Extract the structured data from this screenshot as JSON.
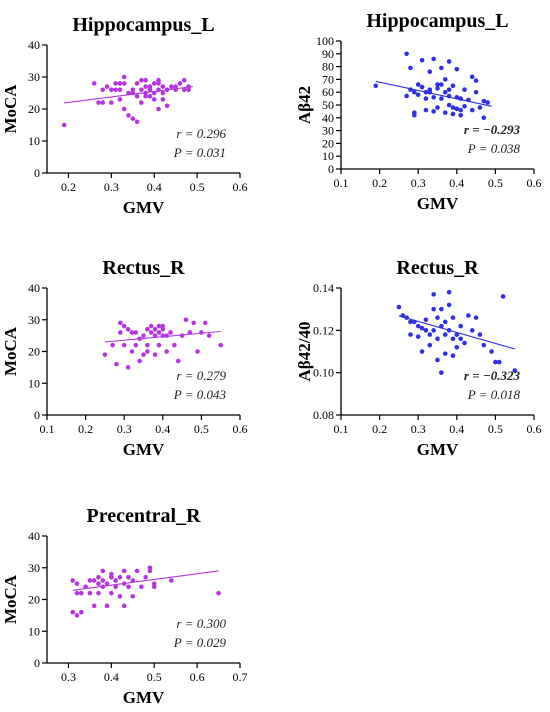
{
  "chart_data": [
    {
      "type": "scatter",
      "title": "Hippocampus_L",
      "xlabel": "GMV",
      "ylabel": "MoCA",
      "xlim": [
        0.15,
        0.6
      ],
      "ylim": [
        0,
        40
      ],
      "xticks": [
        0.2,
        0.3,
        0.4,
        0.5,
        0.6
      ],
      "xtick_labels": [
        "0.2",
        "0.3",
        "0.4",
        "0.5",
        "0.6"
      ],
      "yticks": [
        0,
        10,
        20,
        30,
        40
      ],
      "ytick_labels": [
        "0",
        "10",
        "20",
        "30",
        "40"
      ],
      "color": "#b535e2",
      "r_text": "r = 0.296",
      "p_text": "P = 0.031",
      "fit_line": [
        [
          0.19,
          21.9
        ],
        [
          0.49,
          27.0
        ]
      ],
      "points": [
        [
          0.19,
          15
        ],
        [
          0.26,
          28
        ],
        [
          0.27,
          22
        ],
        [
          0.28,
          26
        ],
        [
          0.28,
          22
        ],
        [
          0.29,
          27
        ],
        [
          0.3,
          26
        ],
        [
          0.3,
          22
        ],
        [
          0.31,
          28
        ],
        [
          0.31,
          26
        ],
        [
          0.32,
          28
        ],
        [
          0.32,
          23
        ],
        [
          0.32,
          26
        ],
        [
          0.33,
          30
        ],
        [
          0.33,
          20
        ],
        [
          0.33,
          28
        ],
        [
          0.34,
          25
        ],
        [
          0.34,
          18
        ],
        [
          0.35,
          26
        ],
        [
          0.35,
          17
        ],
        [
          0.35,
          25
        ],
        [
          0.36,
          24
        ],
        [
          0.36,
          16
        ],
        [
          0.36,
          28
        ],
        [
          0.37,
          26
        ],
        [
          0.37,
          29
        ],
        [
          0.37,
          22
        ],
        [
          0.38,
          24
        ],
        [
          0.38,
          27
        ],
        [
          0.38,
          25
        ],
        [
          0.38,
          29
        ],
        [
          0.39,
          27
        ],
        [
          0.39,
          24
        ],
        [
          0.39,
          26
        ],
        [
          0.4,
          28
        ],
        [
          0.4,
          23
        ],
        [
          0.4,
          25
        ],
        [
          0.41,
          26
        ],
        [
          0.41,
          29
        ],
        [
          0.41,
          28
        ],
        [
          0.41,
          20
        ],
        [
          0.42,
          27
        ],
        [
          0.42,
          25
        ],
        [
          0.42,
          23
        ],
        [
          0.43,
          26
        ],
        [
          0.43,
          21
        ],
        [
          0.44,
          27
        ],
        [
          0.45,
          26
        ],
        [
          0.45,
          27
        ],
        [
          0.46,
          28
        ],
        [
          0.47,
          26
        ],
        [
          0.47,
          29
        ],
        [
          0.48,
          27
        ],
        [
          0.48,
          26
        ]
      ]
    },
    {
      "type": "scatter",
      "title": "Hippocampus_L",
      "xlabel": "GMV",
      "ylabel": "Aβ42",
      "xlim": [
        0.1,
        0.6
      ],
      "ylim": [
        0,
        100
      ],
      "xticks": [
        0.1,
        0.2,
        0.3,
        0.4,
        0.5,
        0.6
      ],
      "xtick_labels": [
        "0.1",
        "0.2",
        "0.3",
        "0.4",
        "0.5",
        "0.6"
      ],
      "yticks": [
        0,
        10,
        20,
        30,
        40,
        50,
        60,
        70,
        80,
        90,
        100
      ],
      "ytick_labels": [
        "0",
        "10",
        "20",
        "30",
        "40",
        "50",
        "60",
        "70",
        "80",
        "90",
        "100"
      ],
      "color": "#2f2fe8",
      "r_text": "r = −0.293",
      "p_text": "P = 0.038",
      "fit_line": [
        [
          0.19,
          68.5
        ],
        [
          0.49,
          49.0
        ]
      ],
      "points": [
        [
          0.19,
          65
        ],
        [
          0.27,
          57
        ],
        [
          0.27,
          90
        ],
        [
          0.28,
          62
        ],
        [
          0.28,
          79
        ],
        [
          0.29,
          44
        ],
        [
          0.29,
          60
        ],
        [
          0.29,
          42
        ],
        [
          0.3,
          66
        ],
        [
          0.3,
          58
        ],
        [
          0.31,
          85
        ],
        [
          0.31,
          64
        ],
        [
          0.32,
          55
        ],
        [
          0.32,
          60
        ],
        [
          0.32,
          46
        ],
        [
          0.33,
          62
        ],
        [
          0.33,
          76
        ],
        [
          0.33,
          60
        ],
        [
          0.34,
          86
        ],
        [
          0.34,
          56
        ],
        [
          0.34,
          45
        ],
        [
          0.35,
          66
        ],
        [
          0.35,
          63
        ],
        [
          0.35,
          48
        ],
        [
          0.36,
          55
        ],
        [
          0.36,
          79
        ],
        [
          0.36,
          66
        ],
        [
          0.37,
          70
        ],
        [
          0.37,
          60
        ],
        [
          0.37,
          44
        ],
        [
          0.38,
          57
        ],
        [
          0.38,
          84
        ],
        [
          0.38,
          62
        ],
        [
          0.38,
          50
        ],
        [
          0.39,
          65
        ],
        [
          0.39,
          48
        ],
        [
          0.39,
          43
        ],
        [
          0.4,
          56
        ],
        [
          0.4,
          47
        ],
        [
          0.4,
          78
        ],
        [
          0.41,
          46
        ],
        [
          0.41,
          55
        ],
        [
          0.41,
          42
        ],
        [
          0.42,
          62
        ],
        [
          0.42,
          49
        ],
        [
          0.43,
          54
        ],
        [
          0.44,
          72
        ],
        [
          0.44,
          46
        ],
        [
          0.45,
          69
        ],
        [
          0.45,
          60
        ],
        [
          0.46,
          48
        ],
        [
          0.47,
          40
        ],
        [
          0.47,
          53
        ],
        [
          0.48,
          52
        ]
      ]
    },
    {
      "type": "scatter",
      "title": "Rectus_R",
      "xlabel": "GMV",
      "ylabel": "MoCA",
      "xlim": [
        0.1,
        0.6
      ],
      "ylim": [
        0,
        40
      ],
      "xticks": [
        0.1,
        0.2,
        0.3,
        0.4,
        0.5,
        0.6
      ],
      "xtick_labels": [
        "0.1",
        "0.2",
        "0.3",
        "0.4",
        "0.5",
        "0.6"
      ],
      "yticks": [
        0,
        10,
        20,
        30,
        40
      ],
      "ytick_labels": [
        "0",
        "10",
        "20",
        "30",
        "40"
      ],
      "color": "#b535e2",
      "r_text": "r = 0.279",
      "p_text": "P = 0.043",
      "fit_line": [
        [
          0.25,
          23.0
        ],
        [
          0.55,
          26.3
        ]
      ],
      "points": [
        [
          0.25,
          19
        ],
        [
          0.27,
          22
        ],
        [
          0.28,
          16
        ],
        [
          0.29,
          29
        ],
        [
          0.29,
          26
        ],
        [
          0.3,
          28
        ],
        [
          0.3,
          22
        ],
        [
          0.31,
          27
        ],
        [
          0.31,
          15
        ],
        [
          0.32,
          26
        ],
        [
          0.32,
          20
        ],
        [
          0.33,
          26
        ],
        [
          0.33,
          22
        ],
        [
          0.34,
          17
        ],
        [
          0.34,
          24
        ],
        [
          0.35,
          19
        ],
        [
          0.35,
          25
        ],
        [
          0.36,
          22
        ],
        [
          0.36,
          27
        ],
        [
          0.36,
          20
        ],
        [
          0.37,
          28
        ],
        [
          0.37,
          26
        ],
        [
          0.38,
          25
        ],
        [
          0.38,
          27
        ],
        [
          0.38,
          19
        ],
        [
          0.39,
          26
        ],
        [
          0.39,
          28
        ],
        [
          0.39,
          22
        ],
        [
          0.4,
          27
        ],
        [
          0.4,
          25
        ],
        [
          0.4,
          28
        ],
        [
          0.41,
          25
        ],
        [
          0.41,
          20
        ],
        [
          0.42,
          26
        ],
        [
          0.43,
          22
        ],
        [
          0.44,
          17
        ],
        [
          0.45,
          25
        ],
        [
          0.46,
          30
        ],
        [
          0.47,
          26
        ],
        [
          0.48,
          29
        ],
        [
          0.49,
          20
        ],
        [
          0.5,
          26
        ],
        [
          0.51,
          29
        ],
        [
          0.52,
          25
        ],
        [
          0.55,
          22
        ]
      ]
    },
    {
      "type": "scatter",
      "title": "Rectus_R",
      "xlabel": "GMV",
      "ylabel": "Aβ42/40",
      "xlim": [
        0.1,
        0.6
      ],
      "ylim": [
        0.08,
        0.14
      ],
      "xticks": [
        0.1,
        0.2,
        0.3,
        0.4,
        0.5,
        0.6
      ],
      "xtick_labels": [
        "0.1",
        "0.2",
        "0.3",
        "0.4",
        "0.5",
        "0.6"
      ],
      "yticks": [
        0.08,
        0.1,
        0.12,
        0.14
      ],
      "ytick_labels": [
        "0.08",
        "0.10",
        "0.12",
        "0.14"
      ],
      "color": "#2f2fe8",
      "r_text": "r = −0.323",
      "p_text": "P = 0.018",
      "fit_line": [
        [
          0.25,
          0.1268
        ],
        [
          0.55,
          0.1112
        ]
      ],
      "points": [
        [
          0.25,
          0.131
        ],
        [
          0.26,
          0.127
        ],
        [
          0.27,
          0.126
        ],
        [
          0.28,
          0.124
        ],
        [
          0.28,
          0.118
        ],
        [
          0.29,
          0.124
        ],
        [
          0.3,
          0.122
        ],
        [
          0.3,
          0.117
        ],
        [
          0.31,
          0.121
        ],
        [
          0.31,
          0.11
        ],
        [
          0.32,
          0.125
        ],
        [
          0.32,
          0.12
        ],
        [
          0.33,
          0.118
        ],
        [
          0.33,
          0.113
        ],
        [
          0.34,
          0.137
        ],
        [
          0.34,
          0.13
        ],
        [
          0.34,
          0.12
        ],
        [
          0.35,
          0.126
        ],
        [
          0.35,
          0.116
        ],
        [
          0.35,
          0.106
        ],
        [
          0.36,
          0.13
        ],
        [
          0.36,
          0.122
        ],
        [
          0.36,
          0.1
        ],
        [
          0.37,
          0.124
        ],
        [
          0.37,
          0.118
        ],
        [
          0.37,
          0.109
        ],
        [
          0.38,
          0.138
        ],
        [
          0.38,
          0.132
        ],
        [
          0.38,
          0.12
        ],
        [
          0.39,
          0.126
        ],
        [
          0.39,
          0.116
        ],
        [
          0.39,
          0.108
        ],
        [
          0.4,
          0.118
        ],
        [
          0.4,
          0.112
        ],
        [
          0.41,
          0.122
        ],
        [
          0.41,
          0.116
        ],
        [
          0.42,
          0.114
        ],
        [
          0.43,
          0.127
        ],
        [
          0.44,
          0.12
        ],
        [
          0.45,
          0.126
        ],
        [
          0.46,
          0.118
        ],
        [
          0.47,
          0.113
        ],
        [
          0.49,
          0.11
        ],
        [
          0.5,
          0.105
        ],
        [
          0.51,
          0.105
        ],
        [
          0.52,
          0.136
        ],
        [
          0.55,
          0.101
        ]
      ]
    },
    {
      "type": "scatter",
      "title": "Precentral_R",
      "xlabel": "GMV",
      "ylabel": "MoCA",
      "xlim": [
        0.25,
        0.7
      ],
      "ylim": [
        0,
        40
      ],
      "xticks": [
        0.3,
        0.4,
        0.5,
        0.6,
        0.7
      ],
      "xtick_labels": [
        "0.3",
        "0.4",
        "0.5",
        "0.6",
        "0.7"
      ],
      "yticks": [
        0,
        10,
        20,
        30,
        40
      ],
      "ytick_labels": [
        "0",
        "10",
        "20",
        "30",
        "40"
      ],
      "color": "#b535e2",
      "r_text": "r = 0.300",
      "p_text": "P = 0.029",
      "fit_line": [
        [
          0.31,
          22.9
        ],
        [
          0.65,
          29.0
        ]
      ],
      "points": [
        [
          0.31,
          26
        ],
        [
          0.31,
          16
        ],
        [
          0.32,
          15
        ],
        [
          0.32,
          22
        ],
        [
          0.32,
          25
        ],
        [
          0.33,
          22
        ],
        [
          0.33,
          16
        ],
        [
          0.34,
          24
        ],
        [
          0.35,
          26
        ],
        [
          0.35,
          22
        ],
        [
          0.36,
          18
        ],
        [
          0.36,
          26
        ],
        [
          0.37,
          25
        ],
        [
          0.37,
          27
        ],
        [
          0.37,
          22
        ],
        [
          0.38,
          29
        ],
        [
          0.38,
          24
        ],
        [
          0.38,
          26
        ],
        [
          0.39,
          25
        ],
        [
          0.39,
          18
        ],
        [
          0.4,
          27
        ],
        [
          0.4,
          22
        ],
        [
          0.4,
          28
        ],
        [
          0.41,
          26
        ],
        [
          0.41,
          24
        ],
        [
          0.42,
          27
        ],
        [
          0.42,
          21
        ],
        [
          0.43,
          25
        ],
        [
          0.43,
          29
        ],
        [
          0.43,
          18
        ],
        [
          0.44,
          24
        ],
        [
          0.44,
          27
        ],
        [
          0.45,
          26
        ],
        [
          0.45,
          21
        ],
        [
          0.46,
          29
        ],
        [
          0.47,
          24
        ],
        [
          0.48,
          27
        ],
        [
          0.49,
          30
        ],
        [
          0.49,
          29
        ],
        [
          0.5,
          25
        ],
        [
          0.5,
          24
        ],
        [
          0.54,
          26
        ],
        [
          0.65,
          22
        ]
      ]
    }
  ]
}
